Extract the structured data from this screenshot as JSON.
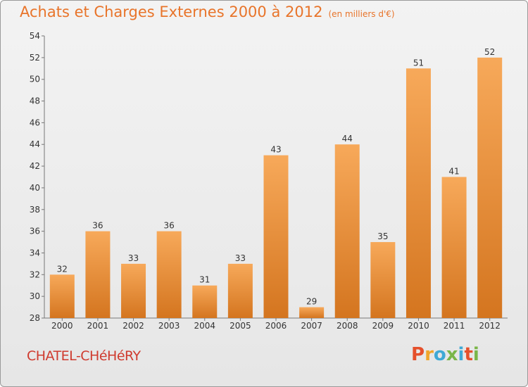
{
  "title": "Achats et Charges Externes 2000 à 2012",
  "unit": "(en milliers d'€)",
  "commune": "CHATEL-CHéHéRY",
  "brand": "Proxiti",
  "colors": {
    "bar_top": "#f7a95a",
    "bar_bottom": "#d4751f",
    "title": "#e8742a",
    "commune": "#cf3a2e"
  },
  "chart_data": {
    "type": "bar",
    "title": "Achats et Charges Externes 2000 à 2012",
    "subtitle": "(en milliers d'€)",
    "categories": [
      "2000",
      "2001",
      "2002",
      "2003",
      "2004",
      "2005",
      "2006",
      "2007",
      "2008",
      "2009",
      "2010",
      "2011",
      "2012"
    ],
    "values": [
      32,
      36,
      33,
      36,
      31,
      33,
      43,
      29,
      44,
      35,
      51,
      41,
      52
    ],
    "ylim": [
      28,
      54
    ],
    "yticks": [
      28,
      30,
      32,
      34,
      36,
      38,
      40,
      42,
      44,
      46,
      48,
      50,
      52,
      54
    ],
    "grid": false,
    "legend": "none"
  }
}
